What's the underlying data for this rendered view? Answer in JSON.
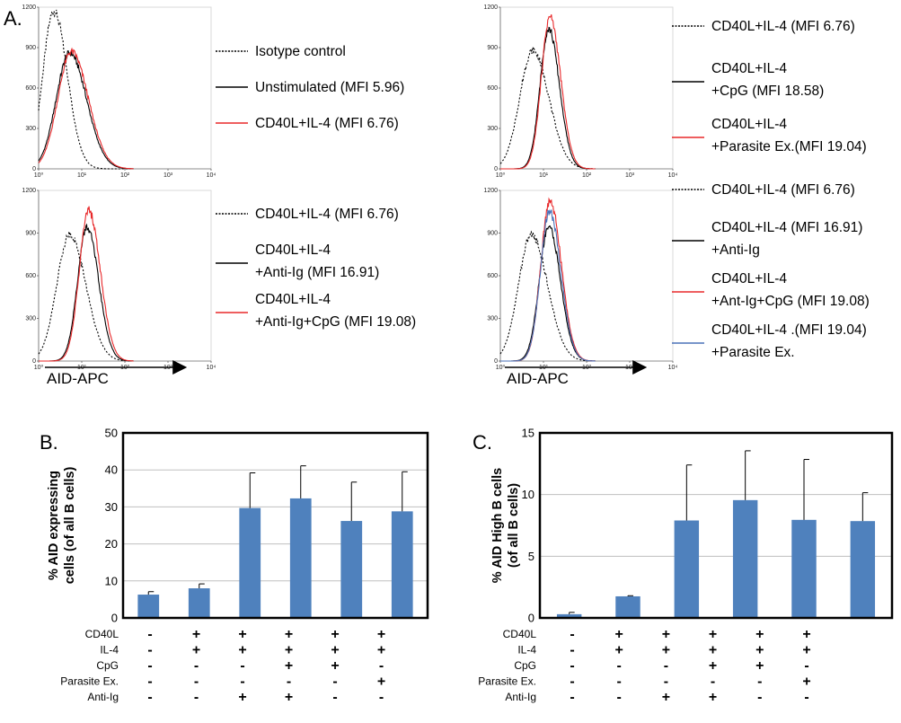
{
  "panel_labels": {
    "a": "A.",
    "b": "B.",
    "c": "C."
  },
  "histogram_xaxis_label": "AID-APC",
  "histograms": [
    {
      "y_ticks": [
        "1200",
        "900",
        "600",
        "300",
        "0"
      ],
      "x_ticks": [
        "10⁰",
        "10¹",
        "10²",
        "10³",
        "10⁴"
      ],
      "legend": [
        {
          "style": "dotted",
          "color": "#000000",
          "text": "Isotype control"
        },
        {
          "style": "solid",
          "color": "#000000",
          "text": "Unstimulated (MFI 5.96)"
        },
        {
          "style": "solid",
          "color": "#e8282a",
          "text": "CD40L+IL-4  (MFI 6.76)"
        }
      ],
      "curves": [
        {
          "color": "#000000",
          "dash": "2,2",
          "peak": 0.35,
          "width": 0.42,
          "height": 1170
        },
        {
          "color": "#000000",
          "dash": "",
          "peak": 0.72,
          "width": 0.52,
          "height": 860
        },
        {
          "color": "#e8282a",
          "dash": "",
          "peak": 0.76,
          "width": 0.52,
          "height": 870
        }
      ]
    },
    {
      "y_ticks": [
        "1200",
        "900",
        "600",
        "300",
        "0"
      ],
      "x_ticks": [
        "10⁰",
        "10¹",
        "10²",
        "10³",
        "10⁴"
      ],
      "legend": [
        {
          "style": "dotted",
          "color": "#000000",
          "text": "CD40L+IL-4 (MFI 6.76)"
        },
        {
          "style": "solid",
          "color": "#000000",
          "text": "CD40L+IL-4",
          "text2": "+CpG (MFI 18.58)"
        },
        {
          "style": "solid",
          "color": "#e8282a",
          "text": "CD40L+IL-4",
          "text2": "+Parasite Ex.(MFI 19.04)"
        }
      ],
      "curves": [
        {
          "color": "#000000",
          "dash": "2,2",
          "peak": 0.75,
          "width": 0.5,
          "height": 880
        },
        {
          "color": "#000000",
          "dash": "",
          "peak": 1.12,
          "width": 0.33,
          "height": 1040
        },
        {
          "color": "#e8282a",
          "dash": "",
          "peak": 1.15,
          "width": 0.33,
          "height": 1130
        }
      ]
    },
    {
      "y_ticks": [
        "1200",
        "900",
        "600",
        "300",
        "0"
      ],
      "x_ticks": [
        "10⁰",
        "10¹",
        "10²",
        "10³",
        "10⁴"
      ],
      "legend": [
        {
          "style": "dotted",
          "color": "#000000",
          "text": "CD40L+IL-4 (MFI 6.76)"
        },
        {
          "style": "solid",
          "color": "#000000",
          "text": "CD40L+IL-4",
          "text2": "+Anti-Ig (MFI 16.91)"
        },
        {
          "style": "solid",
          "color": "#e8282a",
          "text": "CD40L+IL-4",
          "text2": "+Anti-Ig+CpG (MFI 19.08)"
        }
      ],
      "curves": [
        {
          "color": "#000000",
          "dash": "2,2",
          "peak": 0.72,
          "width": 0.5,
          "height": 890
        },
        {
          "color": "#000000",
          "dash": "",
          "peak": 1.12,
          "width": 0.36,
          "height": 940
        },
        {
          "color": "#e8282a",
          "dash": "",
          "peak": 1.16,
          "width": 0.36,
          "height": 1060
        }
      ]
    },
    {
      "y_ticks": [
        "1200",
        "900",
        "600",
        "300",
        "0"
      ],
      "x_ticks": [
        "10⁰",
        "10¹",
        "10²",
        "10³",
        "10⁴"
      ],
      "legend": [
        {
          "style": "dotted",
          "color": "#000000",
          "text": "CD40L+IL-4 (MFI 6.76)"
        },
        {
          "style": "solid",
          "color": "#000000",
          "text": "CD40L+IL-4 (MFI 16.91)",
          "text2": "+Anti-Ig"
        },
        {
          "style": "solid",
          "color": "#e8282a",
          "text": "CD40L+IL-4",
          "text2": "+Ant-Ig+CpG (MFI 19.08)"
        },
        {
          "style": "solid",
          "color": "#4a72b8",
          "text": "CD40L+IL-4 .(MFI 19.04)",
          "text2": "+Parasite Ex."
        }
      ],
      "curves": [
        {
          "color": "#000000",
          "dash": "2,2",
          "peak": 0.72,
          "width": 0.5,
          "height": 890
        },
        {
          "color": "#000000",
          "dash": "",
          "peak": 1.12,
          "width": 0.36,
          "height": 950
        },
        {
          "color": "#e8282a",
          "dash": "",
          "peak": 1.15,
          "width": 0.35,
          "height": 1130
        },
        {
          "color": "#4a72b8",
          "dash": "",
          "peak": 1.14,
          "width": 0.35,
          "height": 1050
        }
      ]
    }
  ],
  "chart_data": [
    {
      "type": "bar",
      "ylabel": "% AID expressing cells (of all B cells)",
      "ylabel_line1": "% AID expressing",
      "ylabel_line2": "cells (of all B cells)",
      "ylim": [
        0,
        50
      ],
      "yticks": [
        "0",
        "10",
        "20",
        "30",
        "40",
        "50"
      ],
      "values": [
        6.3,
        8.0,
        29.7,
        32.3,
        26.2,
        28.8
      ],
      "errors": [
        0.8,
        1.2,
        9.5,
        8.8,
        10.5,
        10.7
      ],
      "bar_color": "#4f81bd",
      "grid": true,
      "conditions": [
        {
          "label": "CD40L",
          "signs": [
            "-",
            "+",
            "+",
            "+",
            "+",
            "+"
          ]
        },
        {
          "label": "IL-4",
          "signs": [
            "-",
            "+",
            "+",
            "+",
            "+",
            "+"
          ]
        },
        {
          "label": "CpG",
          "signs": [
            "-",
            "-",
            "-",
            "+",
            "+",
            "-"
          ]
        },
        {
          "label": "Parasite Ex.",
          "signs": [
            "-",
            "-",
            "-",
            "-",
            "-",
            "+"
          ]
        },
        {
          "label": "Anti-Ig",
          "signs": [
            "-",
            "-",
            "+",
            "+",
            "-",
            "-"
          ]
        }
      ]
    },
    {
      "type": "bar",
      "ylabel": "% AID High B cells (of all B cells)",
      "ylabel_line1": "% AID High B cells",
      "ylabel_line2": "(of all B cells)",
      "ylim": [
        0,
        15
      ],
      "yticks": [
        "0",
        "5",
        "10",
        "15"
      ],
      "values": [
        0.3,
        1.75,
        7.9,
        9.55,
        7.95,
        7.85
      ],
      "errors": [
        0.15,
        0.05,
        4.5,
        4.0,
        4.9,
        2.3
      ],
      "bar_color": "#4f81bd",
      "grid": true,
      "conditions": [
        {
          "label": "CD40L",
          "signs": [
            "-",
            "+",
            "+",
            "+",
            "+",
            "+"
          ]
        },
        {
          "label": "IL-4",
          "signs": [
            "-",
            "+",
            "+",
            "+",
            "+",
            "+"
          ]
        },
        {
          "label": "CpG",
          "signs": [
            "-",
            "-",
            "-",
            "+",
            "+",
            "-"
          ]
        },
        {
          "label": "Parasite Ex.",
          "signs": [
            "-",
            "-",
            "-",
            "-",
            "-",
            "+"
          ]
        },
        {
          "label": "Anti-Ig",
          "signs": [
            "-",
            "-",
            "+",
            "+",
            "-",
            "-"
          ]
        }
      ]
    }
  ]
}
